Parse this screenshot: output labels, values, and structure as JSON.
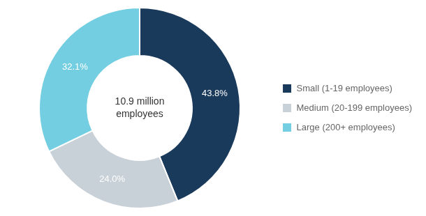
{
  "chart_data": {
    "type": "doughnut",
    "categories": [
      "Small (1-19 employees)",
      "Medium (20-199 employees)",
      "Large (200+ employees)"
    ],
    "values": [
      43.8,
      24.0,
      32.1
    ],
    "value_labels": [
      "43.8%",
      "24.0%",
      "32.1%"
    ],
    "data_labels": true,
    "colors": [
      "#1a3a5c",
      "#c8d0d8",
      "#72cee0"
    ],
    "annotations": [
      "10.9 million",
      "employees"
    ],
    "legend": "right"
  }
}
